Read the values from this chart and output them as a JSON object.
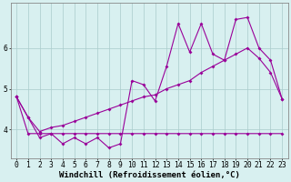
{
  "x": [
    0,
    1,
    2,
    3,
    4,
    5,
    6,
    7,
    8,
    9,
    10,
    11,
    12,
    13,
    14,
    15,
    16,
    17,
    18,
    19,
    20,
    21,
    22,
    23
  ],
  "line1": [
    4.8,
    4.3,
    3.8,
    3.9,
    3.65,
    3.8,
    3.65,
    3.8,
    3.55,
    3.65,
    5.2,
    5.1,
    4.7,
    5.55,
    6.6,
    5.9,
    6.6,
    5.85,
    5.7,
    6.7,
    6.75,
    6.0,
    5.7,
    4.75
  ],
  "line2": [
    4.8,
    4.3,
    3.95,
    4.05,
    4.1,
    4.2,
    4.3,
    4.4,
    4.5,
    4.6,
    4.7,
    4.8,
    4.85,
    5.0,
    5.1,
    5.2,
    5.4,
    5.55,
    5.7,
    5.85,
    6.0,
    5.75,
    5.4,
    4.75
  ],
  "line3": [
    4.8,
    3.9,
    3.9,
    3.9,
    3.9,
    3.9,
    3.9,
    3.9,
    3.9,
    3.9,
    3.9,
    3.9,
    3.9,
    3.9,
    3.9,
    3.9,
    3.9,
    3.9,
    3.9,
    3.9,
    3.9,
    3.9,
    3.9,
    3.9
  ],
  "color": "#990099",
  "bg_color": "#d8f0f0",
  "grid_color": "#aacccc",
  "xlabel": "Windchill (Refroidissement éolien,°C)",
  "ylim": [
    3.3,
    7.1
  ],
  "xlim": [
    -0.5,
    23.5
  ],
  "yticks": [
    4,
    5,
    6
  ],
  "xticks": [
    0,
    1,
    2,
    3,
    4,
    5,
    6,
    7,
    8,
    9,
    10,
    11,
    12,
    13,
    14,
    15,
    16,
    17,
    18,
    19,
    20,
    21,
    22,
    23
  ],
  "xlabel_fontsize": 6.5,
  "tick_fontsize": 5.8,
  "marker": "D",
  "marker_size": 2.0,
  "linewidth": 0.8
}
